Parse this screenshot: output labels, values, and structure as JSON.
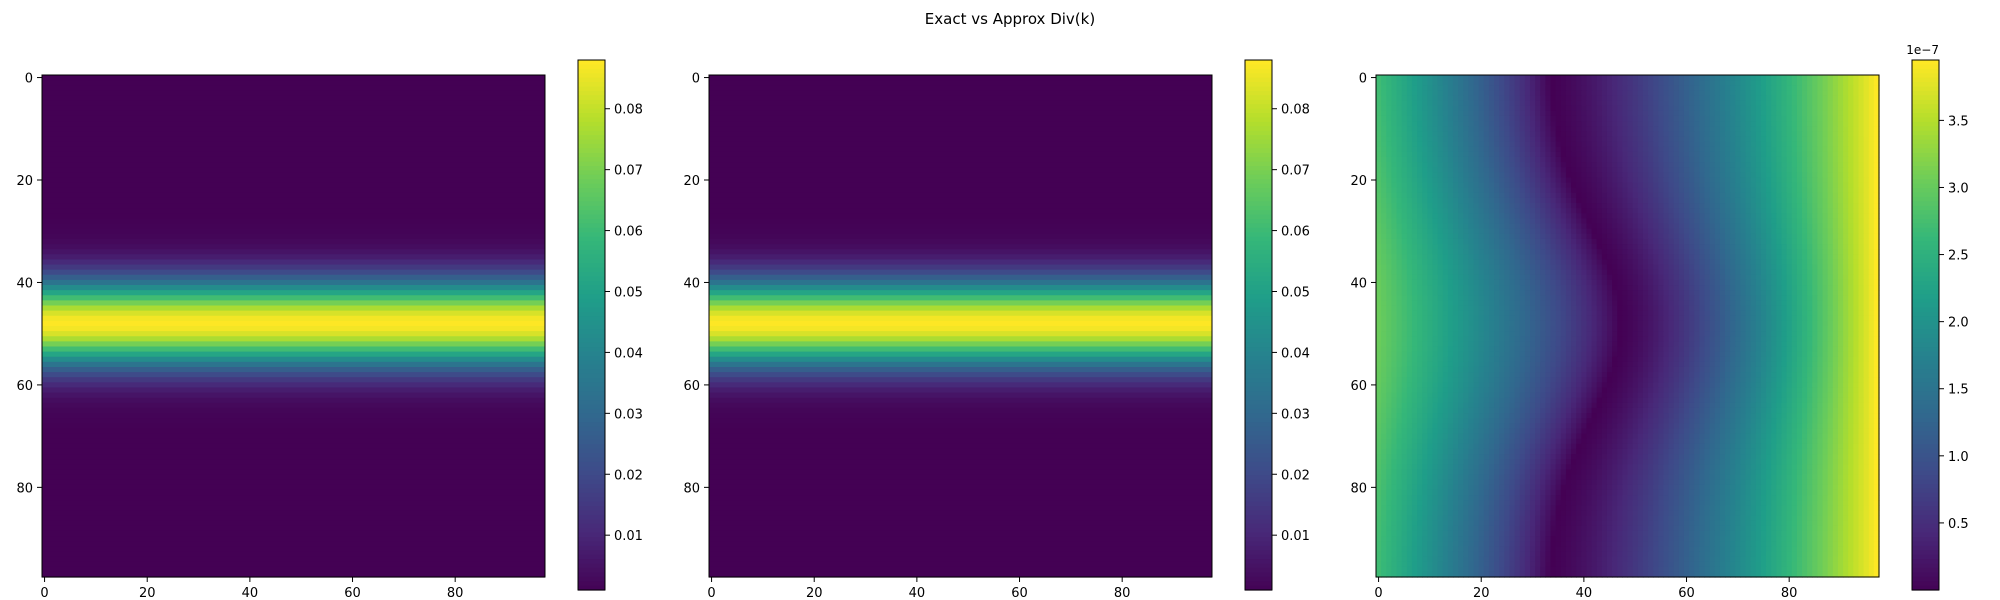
{
  "title": "Exact vs Approx Div(k)",
  "chart_data": [
    {
      "type": "heatmap",
      "title": "",
      "grid_size": [
        98,
        98
      ],
      "xlim": [
        0,
        97
      ],
      "ylim": [
        97,
        0
      ],
      "x_ticks": [
        0,
        20,
        40,
        60,
        80
      ],
      "y_ticks": [
        0,
        20,
        40,
        60,
        80
      ],
      "colormap": "viridis",
      "color_range": [
        0.001,
        0.088
      ],
      "colorbar_ticks": [
        "0.01",
        "0.02",
        "0.03",
        "0.04",
        "0.05",
        "0.06",
        "0.07",
        "0.08"
      ],
      "colorbar_offset": "",
      "pattern": "horizontal band constant along x, gaussian in y, peak 0.088 at row 48, half-width about 8 rows"
    },
    {
      "type": "heatmap",
      "title": "",
      "grid_size": [
        98,
        98
      ],
      "xlim": [
        0,
        97
      ],
      "ylim": [
        97,
        0
      ],
      "x_ticks": [
        0,
        20,
        40,
        60,
        80
      ],
      "y_ticks": [
        0,
        20,
        40,
        60,
        80
      ],
      "colormap": "viridis",
      "color_range": [
        0.001,
        0.088
      ],
      "colorbar_ticks": [
        "0.01",
        "0.02",
        "0.03",
        "0.04",
        "0.05",
        "0.06",
        "0.07",
        "0.08"
      ],
      "colorbar_offset": "",
      "pattern": "horizontal band constant along x, gaussian in y, peak 0.088 at row 48, half-width about 8 rows"
    },
    {
      "type": "heatmap",
      "title": "",
      "grid_size": [
        98,
        98
      ],
      "xlim": [
        0,
        97
      ],
      "ylim": [
        97,
        0
      ],
      "x_ticks": [
        0,
        20,
        40,
        60,
        80
      ],
      "y_ticks": [
        0,
        20,
        40,
        60,
        80
      ],
      "colormap": "viridis",
      "color_range": [
        0.0,
        3.95e-07
      ],
      "colorbar_ticks": [
        "0.5",
        "1.0",
        "1.5",
        "2.0",
        "2.5",
        "3.0",
        "3.5"
      ],
      "colorbar_offset": "1e−7",
      "pattern": "absolute error |exact - approx|; zero along a curve at x≈33 (top/bottom) bending to x≈47 at row 48; max ≈3.9e-7 at right edge corners"
    }
  ]
}
